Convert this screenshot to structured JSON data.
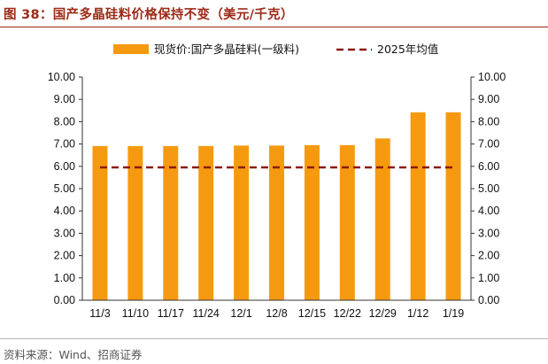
{
  "header": {
    "title": "图 38：国产多晶硅料价格保持不变（美元/千克）"
  },
  "footer": {
    "source": "资料来源：Wind、招商证券"
  },
  "chart_data": {
    "type": "bar",
    "categories": [
      "11/3",
      "11/10",
      "11/17",
      "11/24",
      "12/1",
      "12/8",
      "12/15",
      "12/22",
      "12/29",
      "1/12",
      "1/19"
    ],
    "series": [
      {
        "name": "现货价:国产多晶硅料(一级料)",
        "type": "bar",
        "color": "#f59a10",
        "values": [
          6.91,
          6.91,
          6.91,
          6.91,
          6.93,
          6.93,
          6.95,
          6.95,
          7.25,
          8.42,
          8.42
        ]
      },
      {
        "name": "2025年均值",
        "type": "line",
        "style": "dashed",
        "color": "#8b1a10",
        "values": [
          5.95,
          5.95,
          5.95,
          5.95,
          5.95,
          5.95,
          5.95,
          5.95,
          5.95,
          5.95,
          5.95
        ]
      }
    ],
    "y_ticks": [
      "0.00",
      "1.00",
      "2.00",
      "3.00",
      "4.00",
      "5.00",
      "6.00",
      "7.00",
      "8.00",
      "9.00",
      "10.00"
    ],
    "ylim": [
      0,
      10
    ],
    "y2_ticks": [
      "0.00",
      "1.00",
      "2.00",
      "3.00",
      "4.00",
      "5.00",
      "6.00",
      "7.00",
      "8.00",
      "9.00",
      "10.00"
    ],
    "y2lim": [
      0,
      10
    ],
    "legend_position": "top",
    "grid": false
  }
}
